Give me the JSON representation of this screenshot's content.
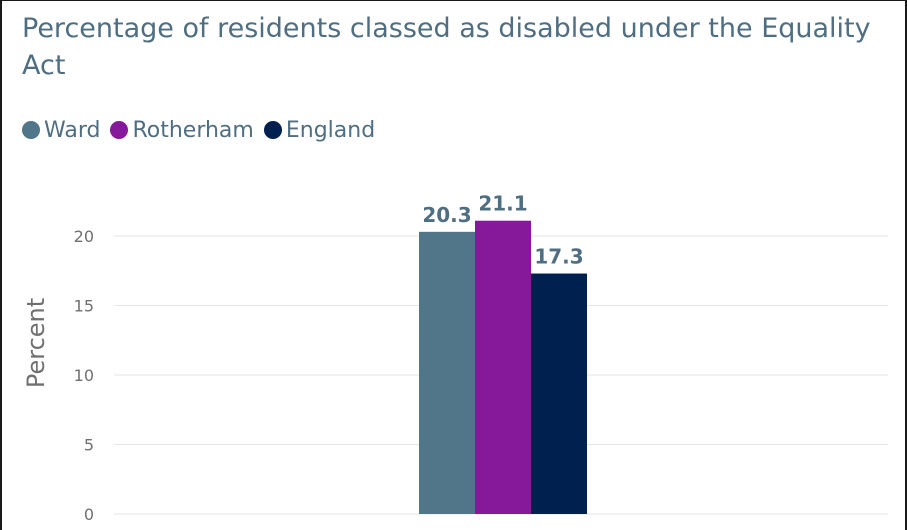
{
  "chart_data": {
    "type": "bar",
    "title": "Percentage of residents classed as disabled under the Equality Act",
    "ylabel": "Percent",
    "xlabel": "",
    "ylim": [
      0,
      25
    ],
    "yticks": [
      0,
      5,
      10,
      15,
      20
    ],
    "grid": true,
    "legend_position": "top-left",
    "categories": [
      ""
    ],
    "series": [
      {
        "name": "Ward",
        "values": [
          20.3
        ],
        "color": "#517589",
        "label_color": "#4f6e82"
      },
      {
        "name": "Rotherham",
        "values": [
          21.1
        ],
        "color": "#86199a",
        "label_color": "#4f6e82"
      },
      {
        "name": "England",
        "values": [
          17.3
        ],
        "color": "#002050",
        "label_color": "#4f6e82"
      }
    ]
  }
}
